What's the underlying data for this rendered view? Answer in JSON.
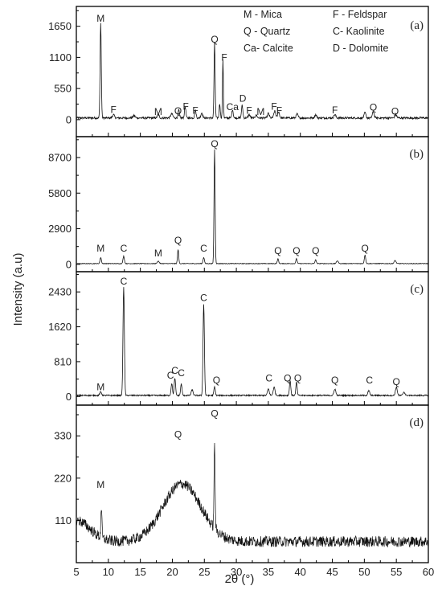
{
  "chart_data": {
    "type": "line",
    "xlabel": "2θ (°)",
    "ylabel": "Intensity (a.u)",
    "xlim": [
      5,
      60
    ],
    "xticks": [
      "5",
      "10",
      "15",
      "20",
      "25",
      "30",
      "35",
      "40",
      "45",
      "50",
      "55",
      "60"
    ],
    "legend": [
      {
        "text": "M - Mica"
      },
      {
        "text": "F - Feldspar"
      },
      {
        "text": "Q - Quartz"
      },
      {
        "text": "C- Kaolinite"
      },
      {
        "text": "Ca- Calcite"
      },
      {
        "text": "D - Dolomite"
      }
    ],
    "panels": [
      {
        "tag": "(a)",
        "ylim": [
          -300,
          2000
        ],
        "yticks": [
          "0",
          "550",
          "1100",
          "1650"
        ],
        "baseline": 30,
        "noise": 18,
        "peaks": [
          [
            8.8,
            1680,
            0.13
          ],
          [
            10.8,
            60,
            0.2
          ],
          [
            14.0,
            40,
            0.25
          ],
          [
            17.8,
            60,
            0.2
          ],
          [
            19.9,
            70,
            0.25
          ],
          [
            21.0,
            140,
            0.15
          ],
          [
            22.0,
            200,
            0.15
          ],
          [
            23.6,
            140,
            0.15
          ],
          [
            24.6,
            90,
            0.2
          ],
          [
            26.6,
            1320,
            0.12
          ],
          [
            27.4,
            250,
            0.12
          ],
          [
            27.9,
            1020,
            0.1
          ],
          [
            29.4,
            150,
            0.15
          ],
          [
            30.9,
            220,
            0.15
          ],
          [
            32.0,
            60,
            0.2
          ],
          [
            33.1,
            50,
            0.2
          ],
          [
            35.0,
            80,
            0.2
          ],
          [
            36.0,
            120,
            0.2
          ],
          [
            36.6,
            110,
            0.2
          ],
          [
            39.5,
            70,
            0.2
          ],
          [
            42.4,
            60,
            0.2
          ],
          [
            45.4,
            60,
            0.2
          ],
          [
            50.1,
            90,
            0.2
          ],
          [
            51.4,
            110,
            0.2
          ],
          [
            54.9,
            70,
            0.2
          ]
        ],
        "labels": [
          {
            "t": "M",
            "x": 8.8,
            "y": 1730
          },
          {
            "t": "F",
            "x": 10.8,
            "y": 120
          },
          {
            "t": "M",
            "x": 17.8,
            "y": 85
          },
          {
            "t": "Q",
            "x": 20.9,
            "y": 95
          },
          {
            "t": "F",
            "x": 22.1,
            "y": 175
          },
          {
            "t": "F",
            "x": 23.6,
            "y": 105
          },
          {
            "t": "Q",
            "x": 26.6,
            "y": 1360
          },
          {
            "t": "F",
            "x": 28.1,
            "y": 1040
          },
          {
            "t": "Ca",
            "x": 29.4,
            "y": 170
          },
          {
            "t": "D",
            "x": 31.0,
            "y": 320
          },
          {
            "t": "F",
            "x": 32.0,
            "y": 105
          },
          {
            "t": "M",
            "x": 33.8,
            "y": 80
          },
          {
            "t": "F",
            "x": 35.9,
            "y": 175
          },
          {
            "t": "F",
            "x": 36.7,
            "y": 105
          },
          {
            "t": "F",
            "x": 45.4,
            "y": 110
          },
          {
            "t": "Q",
            "x": 51.4,
            "y": 160
          },
          {
            "t": "Q",
            "x": 54.8,
            "y": 90
          }
        ]
      },
      {
        "tag": "(b)",
        "ylim": [
          -600,
          10400
        ],
        "yticks": [
          "0",
          "2900",
          "5800",
          "8700"
        ],
        "baseline": 60,
        "noise": 25,
        "peaks": [
          [
            8.8,
            500,
            0.15
          ],
          [
            12.4,
            600,
            0.15
          ],
          [
            17.8,
            200,
            0.2
          ],
          [
            20.9,
            1150,
            0.13
          ],
          [
            24.9,
            500,
            0.15
          ],
          [
            26.6,
            9300,
            0.12
          ],
          [
            36.5,
            380,
            0.15
          ],
          [
            39.4,
            400,
            0.15
          ],
          [
            42.4,
            300,
            0.15
          ],
          [
            45.8,
            230,
            0.2
          ],
          [
            50.1,
            700,
            0.15
          ],
          [
            54.8,
            250,
            0.2
          ]
        ],
        "labels": [
          {
            "t": "M",
            "x": 8.8,
            "y": 1050
          },
          {
            "t": "C",
            "x": 12.4,
            "y": 1050
          },
          {
            "t": "M",
            "x": 17.8,
            "y": 650
          },
          {
            "t": "Q",
            "x": 20.9,
            "y": 1700
          },
          {
            "t": "C",
            "x": 24.9,
            "y": 1050
          },
          {
            "t": "Q",
            "x": 26.6,
            "y": 9550
          },
          {
            "t": "Q",
            "x": 36.5,
            "y": 850
          },
          {
            "t": "Q",
            "x": 39.4,
            "y": 850
          },
          {
            "t": "Q",
            "x": 42.4,
            "y": 850
          },
          {
            "t": "Q",
            "x": 50.1,
            "y": 1050
          }
        ]
      },
      {
        "tag": "(c)",
        "ylim": [
          -200,
          2900
        ],
        "yticks": [
          "0",
          "810",
          "1620",
          "2430"
        ],
        "baseline": 25,
        "noise": 15,
        "peaks": [
          [
            8.8,
            80,
            0.2
          ],
          [
            12.4,
            2530,
            0.15
          ],
          [
            19.9,
            280,
            0.15
          ],
          [
            20.4,
            400,
            0.15
          ],
          [
            21.4,
            270,
            0.15
          ],
          [
            23.1,
            130,
            0.2
          ],
          [
            24.9,
            2120,
            0.15
          ],
          [
            26.6,
            200,
            0.15
          ],
          [
            35.0,
            150,
            0.2
          ],
          [
            35.9,
            190,
            0.2
          ],
          [
            38.4,
            340,
            0.15
          ],
          [
            39.4,
            310,
            0.15
          ],
          [
            45.4,
            150,
            0.2
          ],
          [
            50.7,
            110,
            0.2
          ],
          [
            55.0,
            190,
            0.2
          ],
          [
            56.2,
            80,
            0.2
          ]
        ],
        "labels": [
          {
            "t": "M",
            "x": 8.8,
            "y": 150
          },
          {
            "t": "C",
            "x": 12.4,
            "y": 2600
          },
          {
            "t": "C",
            "x": 19.7,
            "y": 420
          },
          {
            "t": "C",
            "x": 20.4,
            "y": 530
          },
          {
            "t": "C",
            "x": 21.4,
            "y": 470
          },
          {
            "t": "C",
            "x": 24.9,
            "y": 2220
          },
          {
            "t": "Q",
            "x": 26.9,
            "y": 300
          },
          {
            "t": "C",
            "x": 35.1,
            "y": 350
          },
          {
            "t": "Q",
            "x": 38.0,
            "y": 350
          },
          {
            "t": "Q",
            "x": 39.6,
            "y": 350
          },
          {
            "t": "Q",
            "x": 45.4,
            "y": 300
          },
          {
            "t": "C",
            "x": 50.8,
            "y": 300
          },
          {
            "t": "Q",
            "x": 55.0,
            "y": 270
          }
        ]
      },
      {
        "tag": "(d)",
        "ylim": [
          0,
          410
        ],
        "yticks": [
          "110",
          "220",
          "330"
        ],
        "baseline": 55,
        "noise": 14,
        "amorphous": true,
        "peaks": [
          [
            8.9,
            80,
            0.12
          ],
          [
            26.6,
            215,
            0.12
          ]
        ],
        "labels": [
          {
            "t": "M",
            "x": 8.8,
            "y": 195
          },
          {
            "t": "Q",
            "x": 20.9,
            "y": 325
          },
          {
            "t": "Q",
            "x": 26.6,
            "y": 380
          }
        ]
      }
    ]
  }
}
